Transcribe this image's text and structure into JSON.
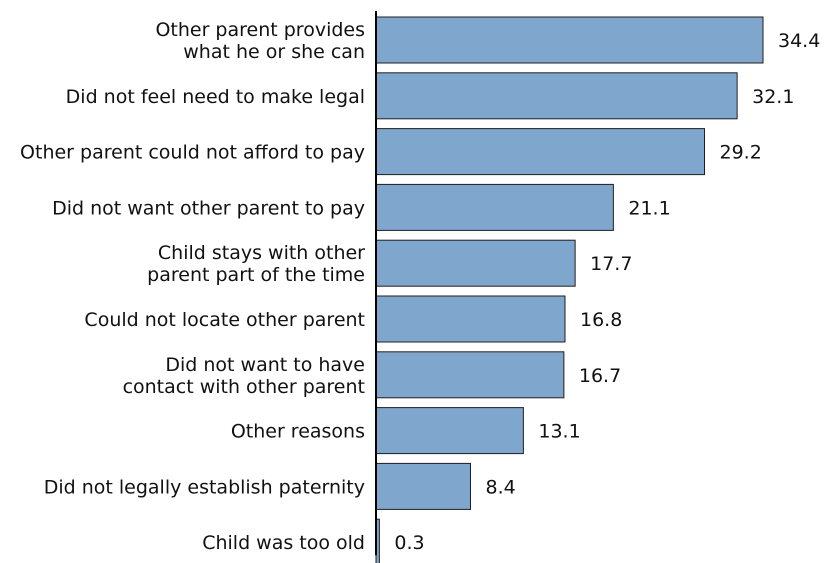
{
  "chart_data": {
    "type": "bar",
    "orientation": "horizontal",
    "categories": [
      "Other parent provides what he or she can",
      "Did not feel need to make legal",
      "Other parent could not afford to pay",
      "Did not want other parent to pay",
      "Child stays with other parent part of the time",
      "Could not locate other parent",
      "Did not want to have contact with other parent",
      "Other reasons",
      "Did not legally establish paternity",
      "Child was too old"
    ],
    "category_lines": [
      [
        "Other parent provides",
        "what he or she can"
      ],
      [
        "Did not feel need to make legal"
      ],
      [
        "Other parent could not afford to pay"
      ],
      [
        "Did not want other parent to pay"
      ],
      [
        "Child stays with other",
        "parent part of the time"
      ],
      [
        "Could not locate other parent"
      ],
      [
        "Did not want to have",
        "contact with other parent"
      ],
      [
        "Other reasons"
      ],
      [
        "Did not legally establish paternity"
      ],
      [
        "Child was too old"
      ]
    ],
    "values": [
      34.4,
      32.1,
      29.2,
      21.1,
      17.7,
      16.8,
      16.7,
      13.1,
      8.4,
      0.3
    ],
    "value_labels": [
      "34.4",
      "32.1",
      "29.2",
      "21.1",
      "17.7",
      "16.8",
      "16.7",
      "13.1",
      "8.4",
      "0.3"
    ],
    "title": "",
    "xlabel": "",
    "ylabel": "",
    "xlim": [
      0,
      40
    ],
    "grid": false,
    "legend": "none",
    "bar_color": "#7fa6cc",
    "bar_edge_color": "#1f1f1f",
    "axis_color": "#000000"
  }
}
